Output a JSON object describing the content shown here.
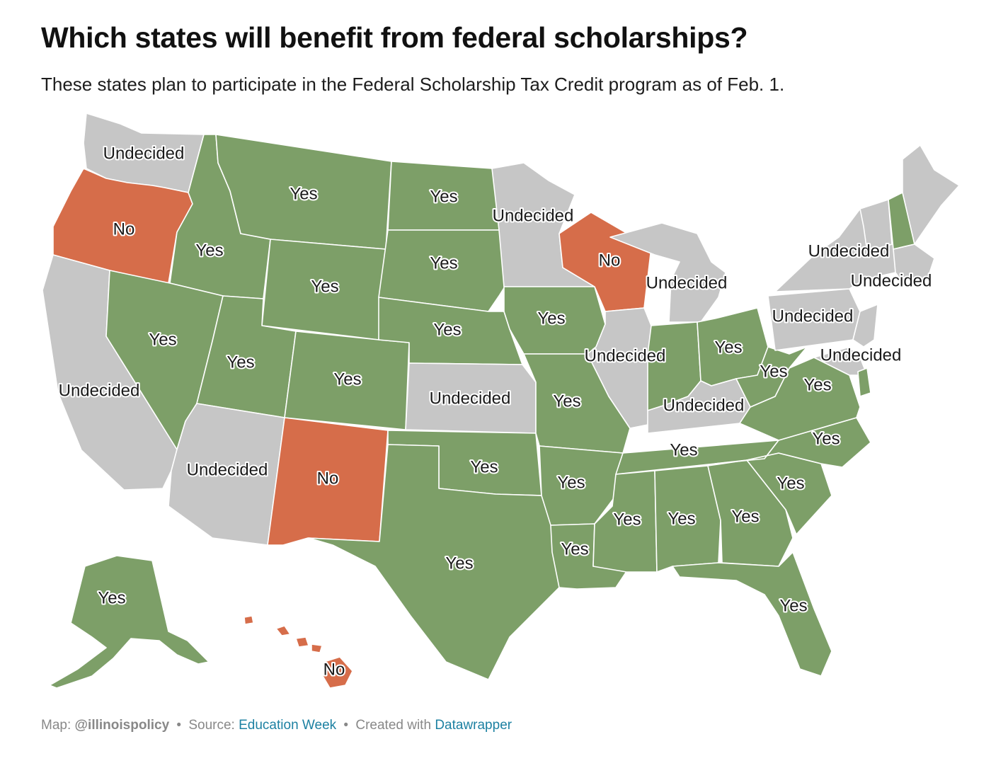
{
  "title": "Which states will benefit from federal scholarships?",
  "subtitle": "These states plan to participate in the Federal Scholarship Tax Credit program as of Feb. 1.",
  "colors": {
    "Yes": "#7d9f68",
    "No": "#d66d4a",
    "Undecided": "#c6c6c6"
  },
  "map": {
    "states": [
      {
        "name": "Washington",
        "status": "Undecided",
        "label": "Undecided"
      },
      {
        "name": "Oregon",
        "status": "No",
        "label": "No"
      },
      {
        "name": "California",
        "status": "Undecided",
        "label": "Undecided"
      },
      {
        "name": "Idaho",
        "status": "Yes",
        "label": "Yes"
      },
      {
        "name": "Nevada",
        "status": "Yes",
        "label": "Yes"
      },
      {
        "name": "Montana",
        "status": "Yes",
        "label": "Yes"
      },
      {
        "name": "Wyoming",
        "status": "Yes",
        "label": "Yes"
      },
      {
        "name": "Utah",
        "status": "Yes",
        "label": "Yes"
      },
      {
        "name": "Colorado",
        "status": "Yes",
        "label": "Yes"
      },
      {
        "name": "Arizona",
        "status": "Undecided",
        "label": "Undecided"
      },
      {
        "name": "New Mexico",
        "status": "No",
        "label": "No"
      },
      {
        "name": "North Dakota",
        "status": "Yes",
        "label": "Yes"
      },
      {
        "name": "South Dakota",
        "status": "Yes",
        "label": "Yes"
      },
      {
        "name": "Nebraska",
        "status": "Yes",
        "label": "Yes"
      },
      {
        "name": "Kansas",
        "status": "Undecided",
        "label": "Undecided"
      },
      {
        "name": "Oklahoma",
        "status": "Yes",
        "label": "Yes"
      },
      {
        "name": "Texas",
        "status": "Yes",
        "label": "Yes"
      },
      {
        "name": "Minnesota",
        "status": "Undecided",
        "label": "Undecided"
      },
      {
        "name": "Iowa",
        "status": "Yes",
        "label": "Yes"
      },
      {
        "name": "Missouri",
        "status": "Yes",
        "label": "Yes"
      },
      {
        "name": "Arkansas",
        "status": "Yes",
        "label": "Yes"
      },
      {
        "name": "Louisiana",
        "status": "Yes",
        "label": "Yes"
      },
      {
        "name": "Wisconsin",
        "status": "No",
        "label": "No"
      },
      {
        "name": "Illinois",
        "status": "Undecided",
        "label": "Undecided"
      },
      {
        "name": "Michigan",
        "status": "Undecided",
        "label": "Undecided"
      },
      {
        "name": "Indiana",
        "status": "Yes",
        "label": ""
      },
      {
        "name": "Ohio",
        "status": "Yes",
        "label": "Yes"
      },
      {
        "name": "Kentucky",
        "status": "Undecided",
        "label": "Undecided"
      },
      {
        "name": "Tennessee",
        "status": "Yes",
        "label": "Yes"
      },
      {
        "name": "Mississippi",
        "status": "Yes",
        "label": "Yes"
      },
      {
        "name": "Alabama",
        "status": "Yes",
        "label": "Yes"
      },
      {
        "name": "Georgia",
        "status": "Yes",
        "label": "Yes"
      },
      {
        "name": "Florida",
        "status": "Yes",
        "label": "Yes"
      },
      {
        "name": "South Carolina",
        "status": "Yes",
        "label": "Yes"
      },
      {
        "name": "North Carolina",
        "status": "Yes",
        "label": "Yes"
      },
      {
        "name": "Virginia",
        "status": "Yes",
        "label": "Yes"
      },
      {
        "name": "West Virginia",
        "status": "Yes",
        "label": "Yes"
      },
      {
        "name": "Pennsylvania",
        "status": "Undecided",
        "label": "Undecided"
      },
      {
        "name": "New York",
        "status": "Undecided",
        "label": "Undecided"
      },
      {
        "name": "Vermont",
        "status": "Undecided",
        "label": ""
      },
      {
        "name": "New Hampshire",
        "status": "Yes",
        "label": ""
      },
      {
        "name": "Maine",
        "status": "Undecided",
        "label": ""
      },
      {
        "name": "Massachusetts",
        "status": "Undecided",
        "label": "Undecided"
      },
      {
        "name": "Maryland",
        "status": "Undecided",
        "label": "Undecided"
      },
      {
        "name": "Delaware",
        "status": "Yes",
        "label": ""
      },
      {
        "name": "New Jersey",
        "status": "Undecided",
        "label": ""
      },
      {
        "name": "Alaska",
        "status": "Yes",
        "label": "Yes"
      },
      {
        "name": "Hawaii",
        "status": "No",
        "label": "No"
      }
    ]
  },
  "footer": {
    "map_prefix": "Map:",
    "map_author": "@illinoispolicy",
    "separator": "•",
    "source_prefix": "Source:",
    "source_name": "Education Week",
    "created_prefix": "Created with",
    "created_tool": "Datawrapper"
  }
}
